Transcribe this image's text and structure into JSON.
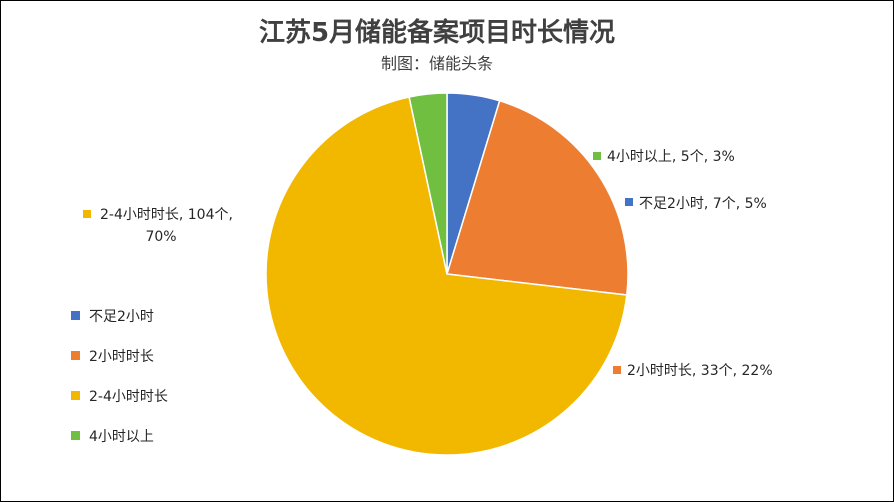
{
  "chart_data": {
    "type": "pie",
    "title": "江苏5月储能备案项目时长情况",
    "subtitle": "制图：储能头条",
    "slices": [
      {
        "category": "不足2小时",
        "count": 7,
        "percent": 5,
        "count_label": "7个",
        "percent_label": "5%",
        "color": "#4472C4",
        "data_label": "不足2小时, 7个, 5%"
      },
      {
        "category": "2小时时长",
        "count": 33,
        "percent": 22,
        "count_label": "33个",
        "percent_label": "22%",
        "color": "#ED7D31",
        "data_label": "2小时时长, 33个, 22%"
      },
      {
        "category": "2-4小时时长",
        "count": 104,
        "percent": 70,
        "count_label": "104个",
        "percent_label": "70%",
        "color": "#F2B800",
        "data_label_line1": "2-4小时时长, 104个,",
        "data_label_line2": "70%"
      },
      {
        "category": "4小时以上",
        "count": 5,
        "percent": 3,
        "count_label": "5个",
        "percent_label": "3%",
        "color": "#70BF41",
        "data_label": "4小时以上, 5个, 3%"
      }
    ],
    "legend": {
      "position": "left",
      "entries": [
        "不足2小时",
        "2小时时长",
        "2-4小时时长",
        "4小时以上"
      ]
    }
  }
}
